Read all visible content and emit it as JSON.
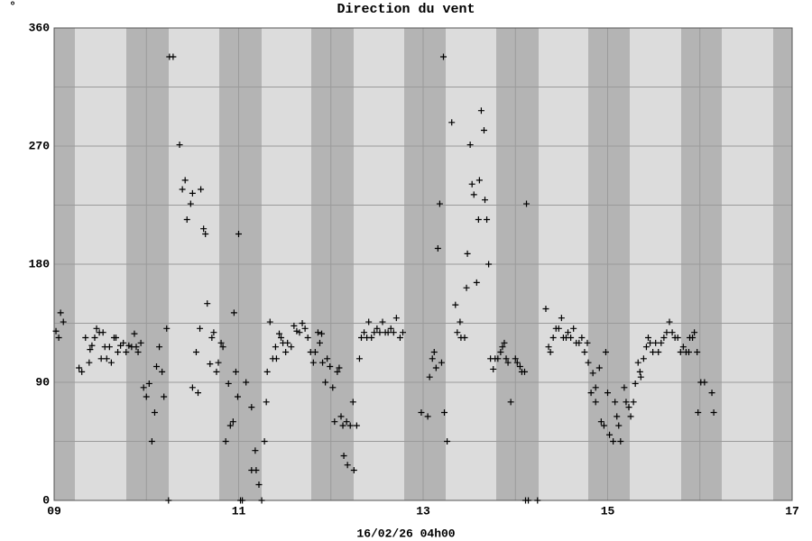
{
  "chart_data": {
    "type": "scatter",
    "title": "Direction du vent",
    "y_label": "°",
    "x_label": "16/02/26 04h00",
    "color": "#000000",
    "grid": true,
    "xlim": [
      9,
      17
    ],
    "xticks": [
      {
        "value": 9,
        "label": "09"
      },
      11,
      13,
      15,
      17
    ],
    "xminor": [
      10,
      12,
      14,
      16
    ],
    "ylim": [
      0,
      360
    ],
    "yticks": [
      0,
      90,
      180,
      270,
      360
    ],
    "yminor": [
      45,
      135,
      225,
      315
    ],
    "x": [
      9.02,
      9.05,
      9.07,
      9.1,
      9.27,
      9.3,
      9.34,
      9.38,
      9.39,
      9.41,
      9.44,
      9.46,
      9.49,
      9.51,
      9.53,
      9.55,
      9.57,
      9.6,
      9.62,
      9.65,
      9.67,
      9.69,
      9.72,
      9.75,
      9.78,
      9.81,
      9.84,
      9.87,
      9.89,
      9.91,
      9.94,
      9.97,
      10.0,
      10.03,
      10.06,
      10.09,
      10.11,
      10.14,
      10.17,
      10.19,
      10.22,
      10.24,
      10.25,
      10.29,
      10.36,
      10.39,
      10.42,
      10.44,
      10.48,
      10.5,
      10.5,
      10.54,
      10.56,
      10.58,
      10.59,
      10.62,
      10.64,
      10.66,
      10.69,
      10.71,
      10.73,
      10.76,
      10.78,
      10.81,
      10.83,
      10.86,
      10.89,
      10.91,
      10.94,
      10.95,
      10.97,
      10.99,
      11.0,
      11.02,
      11.04,
      11.08,
      11.14,
      11.14,
      11.18,
      11.19,
      11.22,
      11.25,
      11.28,
      11.3,
      11.31,
      11.34,
      11.37,
      11.4,
      11.41,
      11.44,
      11.46,
      11.48,
      11.51,
      11.53,
      11.57,
      11.6,
      11.63,
      11.66,
      11.69,
      11.72,
      11.75,
      11.78,
      11.81,
      11.83,
      11.86,
      11.88,
      11.9,
      11.91,
      11.94,
      11.96,
      11.99,
      12.02,
      12.04,
      12.07,
      12.09,
      12.11,
      12.13,
      12.14,
      12.17,
      12.18,
      12.21,
      12.24,
      12.25,
      12.28,
      12.31,
      12.33,
      12.36,
      12.39,
      12.41,
      12.44,
      12.47,
      12.5,
      12.53,
      12.56,
      12.59,
      12.62,
      12.65,
      12.68,
      12.71,
      12.75,
      12.78,
      12.98,
      13.05,
      13.07,
      13.1,
      13.12,
      13.14,
      13.16,
      13.18,
      13.2,
      13.22,
      13.23,
      13.26,
      13.31,
      13.35,
      13.37,
      13.4,
      13.41,
      13.45,
      13.47,
      13.48,
      13.51,
      13.53,
      13.55,
      13.58,
      13.6,
      13.61,
      13.63,
      13.66,
      13.67,
      13.69,
      13.71,
      13.73,
      13.76,
      13.78,
      13.81,
      13.84,
      13.86,
      13.88,
      13.9,
      13.92,
      13.95,
      14.0,
      14.02,
      14.05,
      14.07,
      14.1,
      14.11,
      14.12,
      14.14,
      14.24,
      14.33,
      14.36,
      14.38,
      14.41,
      14.44,
      14.47,
      14.5,
      14.52,
      14.55,
      14.57,
      14.6,
      14.63,
      14.66,
      14.69,
      14.72,
      14.75,
      14.78,
      14.79,
      14.82,
      14.84,
      14.87,
      14.87,
      14.91,
      14.93,
      14.96,
      14.98,
      15.0,
      15.02,
      15.06,
      15.08,
      15.1,
      15.12,
      15.14,
      15.18,
      15.2,
      15.23,
      15.25,
      15.28,
      15.3,
      15.33,
      15.35,
      15.36,
      15.39,
      15.42,
      15.44,
      15.46,
      15.49,
      15.52,
      15.55,
      15.58,
      15.61,
      15.64,
      15.67,
      15.7,
      15.73,
      15.76,
      15.79,
      15.82,
      15.85,
      15.88,
      15.89,
      15.92,
      15.94,
      15.97,
      15.98,
      16.01,
      16.05,
      16.13,
      16.15
    ],
    "values": [
      129,
      124,
      143,
      136,
      101,
      98,
      124,
      105,
      115,
      118,
      124,
      131,
      128,
      108,
      128,
      117,
      108,
      117,
      105,
      124,
      124,
      113,
      118,
      120,
      113,
      118,
      117,
      127,
      117,
      113,
      120,
      86,
      79,
      89,
      45,
      67,
      102,
      117,
      98,
      79,
      131,
      0,
      338,
      338,
      271,
      237,
      244,
      214,
      226,
      234,
      86,
      113,
      82,
      131,
      237,
      207,
      203,
      150,
      104,
      124,
      128,
      98,
      105,
      120,
      117,
      45,
      89,
      57,
      60,
      143,
      98,
      79,
      203,
      0,
      0,
      90,
      71,
      23,
      38,
      23,
      12,
      0,
      45,
      75,
      98,
      136,
      108,
      117,
      108,
      127,
      124,
      120,
      113,
      120,
      117,
      133,
      129,
      128,
      135,
      131,
      124,
      113,
      105,
      113,
      128,
      120,
      127,
      105,
      90,
      108,
      102,
      86,
      60,
      98,
      101,
      64,
      57,
      34,
      60,
      27,
      57,
      75,
      23,
      57,
      108,
      124,
      128,
      124,
      136,
      124,
      128,
      131,
      128,
      136,
      128,
      128,
      131,
      128,
      139,
      124,
      128,
      67,
      64,
      94,
      108,
      113,
      101,
      192,
      226,
      105,
      338,
      67,
      45,
      288,
      149,
      128,
      136,
      124,
      124,
      162,
      188,
      271,
      241,
      233,
      166,
      214,
      244,
      297,
      282,
      229,
      214,
      180,
      108,
      100,
      108,
      108,
      113,
      117,
      120,
      108,
      105,
      75,
      108,
      105,
      102,
      98,
      98,
      0,
      226,
      0,
      0,
      146,
      117,
      113,
      124,
      131,
      131,
      139,
      124,
      124,
      128,
      124,
      131,
      120,
      120,
      124,
      113,
      120,
      105,
      82,
      97,
      86,
      75,
      101,
      60,
      57,
      113,
      82,
      50,
      45,
      75,
      64,
      57,
      45,
      86,
      75,
      71,
      64,
      75,
      89,
      105,
      98,
      94,
      108,
      117,
      124,
      120,
      113,
      120,
      113,
      120,
      124,
      128,
      136,
      128,
      124,
      124,
      113,
      117,
      113,
      113,
      124,
      124,
      128,
      113,
      67,
      90,
      90,
      82,
      67
    ]
  }
}
